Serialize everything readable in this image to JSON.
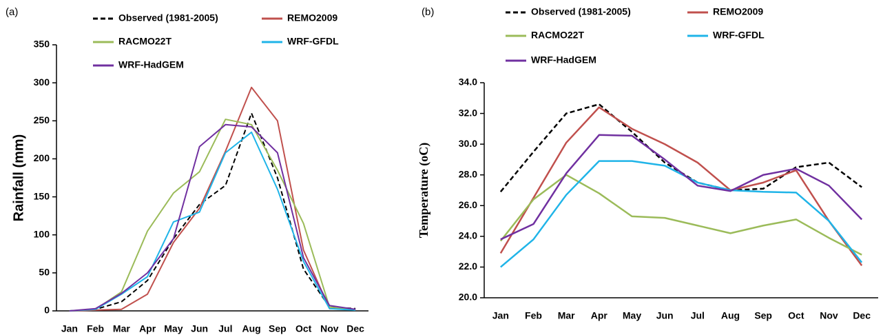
{
  "chart_data": [
    {
      "type": "line",
      "panel": "(a)",
      "ylabel": "Rainfall (mm)",
      "categories": [
        "Jan",
        "Feb",
        "Mar",
        "Apr",
        "May",
        "Jun",
        "Jul",
        "Aug",
        "Sep",
        "Oct",
        "Nov",
        "Dec"
      ],
      "ylim": [
        0,
        350
      ],
      "yticks": [
        0,
        50,
        100,
        150,
        200,
        250,
        300,
        350
      ],
      "grid": false,
      "series": [
        {
          "name": "Observed (1981-2005)",
          "color": "#000000",
          "dashed": true,
          "values": [
            0,
            2,
            12,
            40,
            95,
            140,
            165,
            260,
            175,
            55,
            5,
            3
          ]
        },
        {
          "name": "REMO2009",
          "color": "#c0504d",
          "values": [
            0,
            1,
            2,
            22,
            90,
            135,
            210,
            294,
            250,
            80,
            3,
            2
          ]
        },
        {
          "name": "RACMO22T",
          "color": "#9bbb59",
          "values": [
            0,
            2,
            25,
            105,
            155,
            183,
            252,
            245,
            185,
            115,
            5,
            1
          ]
        },
        {
          "name": "WRF-GFDL",
          "color": "#1fb4e8",
          "values": [
            0,
            2,
            22,
            45,
            117,
            130,
            208,
            235,
            160,
            65,
            3,
            1
          ]
        },
        {
          "name": "WRF-HadGEM",
          "color": "#7030a0",
          "values": [
            0,
            3,
            23,
            50,
            95,
            216,
            245,
            242,
            208,
            70,
            7,
            2
          ]
        }
      ]
    },
    {
      "type": "line",
      "panel": "(b)",
      "ylabel": "Temperature (oC)",
      "categories": [
        "Jan",
        "Feb",
        "Mar",
        "Apr",
        "May",
        "Jun",
        "Jul",
        "Aug",
        "Sep",
        "Oct",
        "Nov",
        "Dec"
      ],
      "ylim": [
        20,
        34
      ],
      "grid": false,
      "yticks": [
        {
          "value": 20,
          "label": "20.0"
        },
        {
          "value": 22,
          "label": "22.0"
        },
        {
          "value": 24,
          "label": "24.0"
        },
        {
          "value": 26,
          "label": "26.0"
        },
        {
          "value": 28,
          "label": "28.0"
        },
        {
          "value": 30,
          "label": "30.0"
        },
        {
          "value": 32,
          "label": "32.0"
        },
        {
          "value": 34,
          "label": "34.0"
        }
      ],
      "series": [
        {
          "name": "Observed (1981-2005)",
          "color": "#000000",
          "dashed": true,
          "values": [
            26.9,
            29.5,
            32.0,
            32.6,
            30.8,
            28.8,
            27.5,
            27.0,
            27.1,
            28.5,
            28.8,
            27.2
          ]
        },
        {
          "name": "REMO2009",
          "color": "#c0504d",
          "values": [
            22.9,
            26.5,
            30.1,
            32.4,
            31.0,
            30.0,
            28.8,
            27.0,
            27.5,
            28.3,
            25.0,
            22.1
          ]
        },
        {
          "name": "RACMO22T",
          "color": "#9bbb59",
          "values": [
            23.7,
            26.4,
            28.0,
            26.8,
            25.3,
            25.2,
            24.7,
            24.2,
            24.7,
            25.1,
            23.9,
            22.8
          ]
        },
        {
          "name": "WRF-GFDL",
          "color": "#1fb4e8",
          "values": [
            22.0,
            23.8,
            26.7,
            28.9,
            28.9,
            28.6,
            27.5,
            27.0,
            26.9,
            26.85,
            25.0,
            22.3
          ]
        },
        {
          "name": "WRF-HadGEM",
          "color": "#7030a0",
          "values": [
            23.8,
            24.8,
            28.1,
            30.6,
            30.55,
            29.0,
            27.3,
            26.95,
            28.0,
            28.4,
            27.3,
            25.1
          ]
        }
      ]
    }
  ]
}
